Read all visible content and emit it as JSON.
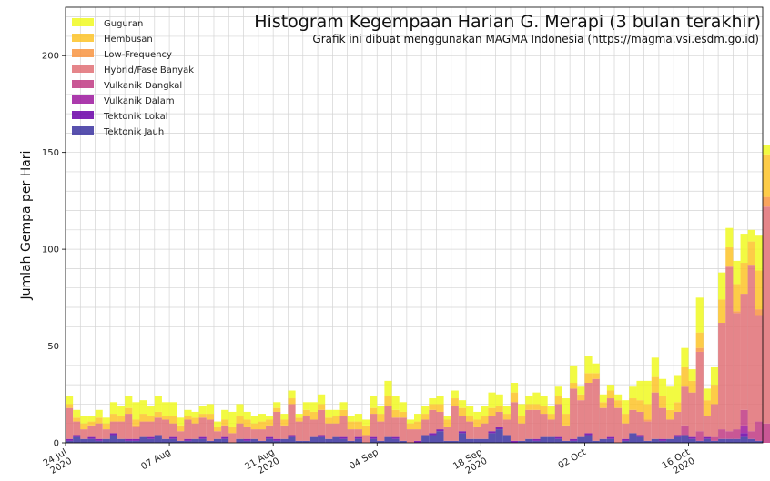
{
  "chart_data": {
    "type": "bar",
    "stacked": true,
    "title": "Histogram Kegempaan Harian G. Merapi (3 bulan terakhir)",
    "subtitle": "Grafik ini dibuat menggunakan MAGMA Indonesia (https://magma.vsi.esdm.go.id)",
    "xlabel": "",
    "ylabel": "Jumlah Gempa per Hari",
    "ylim": [
      0,
      225
    ],
    "yticks": [
      0,
      50,
      100,
      150,
      200
    ],
    "x_start": "2020-07-24",
    "x_end": "2020-10-26",
    "xticks": [
      {
        "date": "2020-07-24",
        "label": "24 Jul\n2020"
      },
      {
        "date": "2020-08-07",
        "label": "07 Aug"
      },
      {
        "date": "2020-08-21",
        "label": "21 Aug\n2020"
      },
      {
        "date": "2020-09-04",
        "label": "04 Sep"
      },
      {
        "date": "2020-09-18",
        "label": "18 Sep\n2020"
      },
      {
        "date": "2020-10-02",
        "label": "02 Oct"
      },
      {
        "date": "2020-10-16",
        "label": "16 Oct\n2020"
      }
    ],
    "grid": true,
    "legend_position": "top-left",
    "series": [
      {
        "name": "Guguran",
        "color": "#f0f921",
        "values": [
          4,
          4,
          4,
          3,
          4,
          3,
          6,
          5,
          6,
          9,
          7,
          5,
          8,
          7,
          7,
          4,
          3,
          3,
          4,
          5,
          3,
          5,
          8,
          6,
          4,
          4,
          4,
          2,
          3,
          3,
          4,
          2,
          4,
          5,
          5,
          4,
          3,
          4,
          3,
          4,
          3,
          6,
          4,
          8,
          7,
          5,
          2,
          4,
          4,
          3,
          4,
          2,
          4,
          4,
          5,
          4,
          5,
          8,
          6,
          4,
          5,
          6,
          4,
          6,
          5,
          4,
          5,
          8,
          9,
          4,
          9,
          5,
          4,
          3,
          3,
          7,
          6,
          10,
          12,
          10,
          9,
          12,
          14,
          10,
          6,
          18,
          6,
          9,
          14,
          10,
          12,
          15,
          6,
          18,
          5,
          9
        ]
      },
      {
        "name": "Hembusan",
        "color": "#fdc328",
        "values": [
          2,
          2,
          3,
          2,
          3,
          3,
          4,
          3,
          3,
          3,
          4,
          3,
          3,
          2,
          4,
          3,
          2,
          3,
          2,
          3,
          2,
          3,
          3,
          4,
          4,
          3,
          4,
          3,
          2,
          3,
          3,
          2,
          3,
          4,
          3,
          3,
          4,
          3,
          4,
          4,
          5,
          3,
          4,
          5,
          4,
          3,
          3,
          4,
          3,
          3,
          4,
          4,
          4,
          4,
          3,
          4,
          4,
          4,
          3,
          3,
          5,
          4,
          3,
          3,
          4,
          3,
          4,
          6,
          3,
          3,
          5,
          3,
          3,
          4,
          4,
          5,
          6,
          6,
          8,
          8,
          6,
          5,
          5,
          10,
          6,
          8,
          8,
          10,
          12,
          10,
          14,
          16,
          12,
          20,
          22,
          18
        ]
      },
      {
        "name": "Low-Frequency",
        "color": "#f89441",
        "values": [
          0,
          0,
          0,
          0,
          0,
          0,
          0,
          0,
          0,
          1,
          0,
          0,
          0,
          0,
          0,
          0,
          0,
          0,
          0,
          0,
          0,
          0,
          0,
          0,
          0,
          0,
          0,
          0,
          0,
          0,
          0,
          0,
          0,
          0,
          0,
          0,
          0,
          0,
          0,
          0,
          0,
          0,
          0,
          0,
          0,
          0,
          0,
          0,
          0,
          0,
          0,
          0,
          0,
          0,
          0,
          0,
          0,
          0,
          0,
          0,
          0,
          0,
          0,
          0,
          0,
          0,
          0,
          0,
          0,
          0,
          0,
          0,
          0,
          0,
          0,
          0,
          0,
          0,
          1,
          0,
          0,
          0,
          0,
          0,
          0,
          2,
          0,
          0,
          0,
          0,
          1,
          0,
          0,
          3,
          5,
          5
        ]
      },
      {
        "name": "Hybrid/Fase Banyak",
        "color": "#e07076",
        "values": [
          16,
          7,
          5,
          6,
          8,
          5,
          6,
          9,
          13,
          6,
          8,
          8,
          9,
          10,
          7,
          5,
          10,
          8,
          10,
          11,
          4,
          6,
          5,
          8,
          6,
          5,
          6,
          6,
          14,
          7,
          16,
          10,
          13,
          9,
          13,
          8,
          7,
          11,
          6,
          4,
          4,
          12,
          10,
          16,
          10,
          12,
          7,
          6,
          8,
          12,
          9,
          7,
          18,
          8,
          9,
          6,
          8,
          8,
          8,
          8,
          20,
          9,
          15,
          15,
          12,
          9,
          17,
          8,
          26,
          19,
          26,
          32,
          16,
          20,
          18,
          8,
          12,
          12,
          10,
          24,
          16,
          10,
          12,
          20,
          23,
          41,
          11,
          17,
          55,
          85,
          60,
          60,
          86,
          55,
          112,
          113
        ]
      },
      {
        "name": "Vulkanik Dangkal",
        "color": "#c03a83",
        "values": [
          0,
          0,
          0,
          0,
          0,
          0,
          0,
          0,
          0,
          0,
          0,
          0,
          0,
          0,
          0,
          0,
          0,
          0,
          0,
          0,
          0,
          0,
          0,
          0,
          0,
          0,
          0,
          0,
          0,
          0,
          0,
          0,
          0,
          0,
          0,
          0,
          0,
          0,
          0,
          0,
          0,
          0,
          0,
          0,
          0,
          0,
          0,
          0,
          0,
          0,
          0,
          0,
          0,
          0,
          0,
          0,
          0,
          0,
          0,
          0,
          0,
          0,
          0,
          0,
          0,
          0,
          0,
          0,
          0,
          0,
          0,
          0,
          0,
          0,
          0,
          0,
          0,
          0,
          0,
          0,
          0,
          0,
          0,
          5,
          0,
          5,
          0,
          2,
          5,
          4,
          5,
          8,
          4,
          10,
          10,
          10
        ]
      },
      {
        "name": "Vulkanik Dalam",
        "color": "#9c179e",
        "values": [
          0,
          0,
          0,
          0,
          0,
          0,
          0,
          0,
          0,
          0,
          0,
          0,
          0,
          0,
          0,
          0,
          0,
          0,
          0,
          0,
          0,
          0,
          0,
          0,
          0,
          0,
          0,
          0,
          0,
          0,
          0,
          0,
          0,
          0,
          0,
          0,
          0,
          0,
          0,
          0,
          0,
          0,
          0,
          0,
          0,
          0,
          0,
          0,
          0,
          0,
          0,
          0,
          0,
          0,
          0,
          0,
          0,
          0,
          0,
          0,
          0,
          0,
          0,
          0,
          0,
          0,
          0,
          0,
          0,
          0,
          0,
          0,
          0,
          0,
          0,
          0,
          0,
          0,
          0,
          0,
          0,
          0,
          0,
          0,
          0,
          0,
          0,
          0,
          0,
          0,
          0,
          4,
          0,
          0,
          0,
          0
        ]
      },
      {
        "name": "Tektonik Lokal",
        "color": "#6a00a8",
        "values": [
          1,
          1,
          0,
          1,
          1,
          0,
          1,
          0,
          1,
          1,
          0,
          1,
          0,
          0,
          1,
          0,
          1,
          0,
          1,
          0,
          0,
          1,
          0,
          0,
          1,
          0,
          0,
          1,
          1,
          0,
          1,
          0,
          0,
          0,
          1,
          0,
          0,
          1,
          0,
          1,
          0,
          1,
          0,
          0,
          1,
          0,
          0,
          1,
          0,
          1,
          1,
          0,
          0,
          1,
          0,
          0,
          0,
          1,
          1,
          0,
          1,
          0,
          0,
          1,
          0,
          0,
          1,
          0,
          1,
          0,
          1,
          0,
          0,
          1,
          0,
          1,
          0,
          1,
          0,
          0,
          1,
          0,
          1,
          0,
          1,
          0,
          1,
          0,
          0,
          0,
          0,
          2,
          0,
          0,
          0,
          0
        ]
      },
      {
        "name": "Tektonik Jauh",
        "color": "#3b33a0",
        "values": [
          1,
          3,
          2,
          2,
          1,
          2,
          4,
          2,
          1,
          1,
          3,
          2,
          4,
          2,
          2,
          1,
          1,
          2,
          2,
          1,
          2,
          2,
          0,
          2,
          1,
          2,
          1,
          2,
          1,
          2,
          3,
          1,
          1,
          3,
          3,
          2,
          3,
          2,
          1,
          2,
          0,
          2,
          1,
          3,
          2,
          1,
          0,
          0,
          4,
          4,
          6,
          1,
          1,
          5,
          2,
          2,
          2,
          5,
          7,
          4,
          0,
          1,
          2,
          1,
          3,
          3,
          2,
          1,
          1,
          3,
          4,
          1,
          2,
          2,
          0,
          1,
          5,
          3,
          1,
          2,
          1,
          2,
          3,
          4,
          2,
          1,
          2,
          1,
          2,
          2,
          2,
          3,
          2,
          1,
          0,
          0
        ]
      }
    ]
  }
}
